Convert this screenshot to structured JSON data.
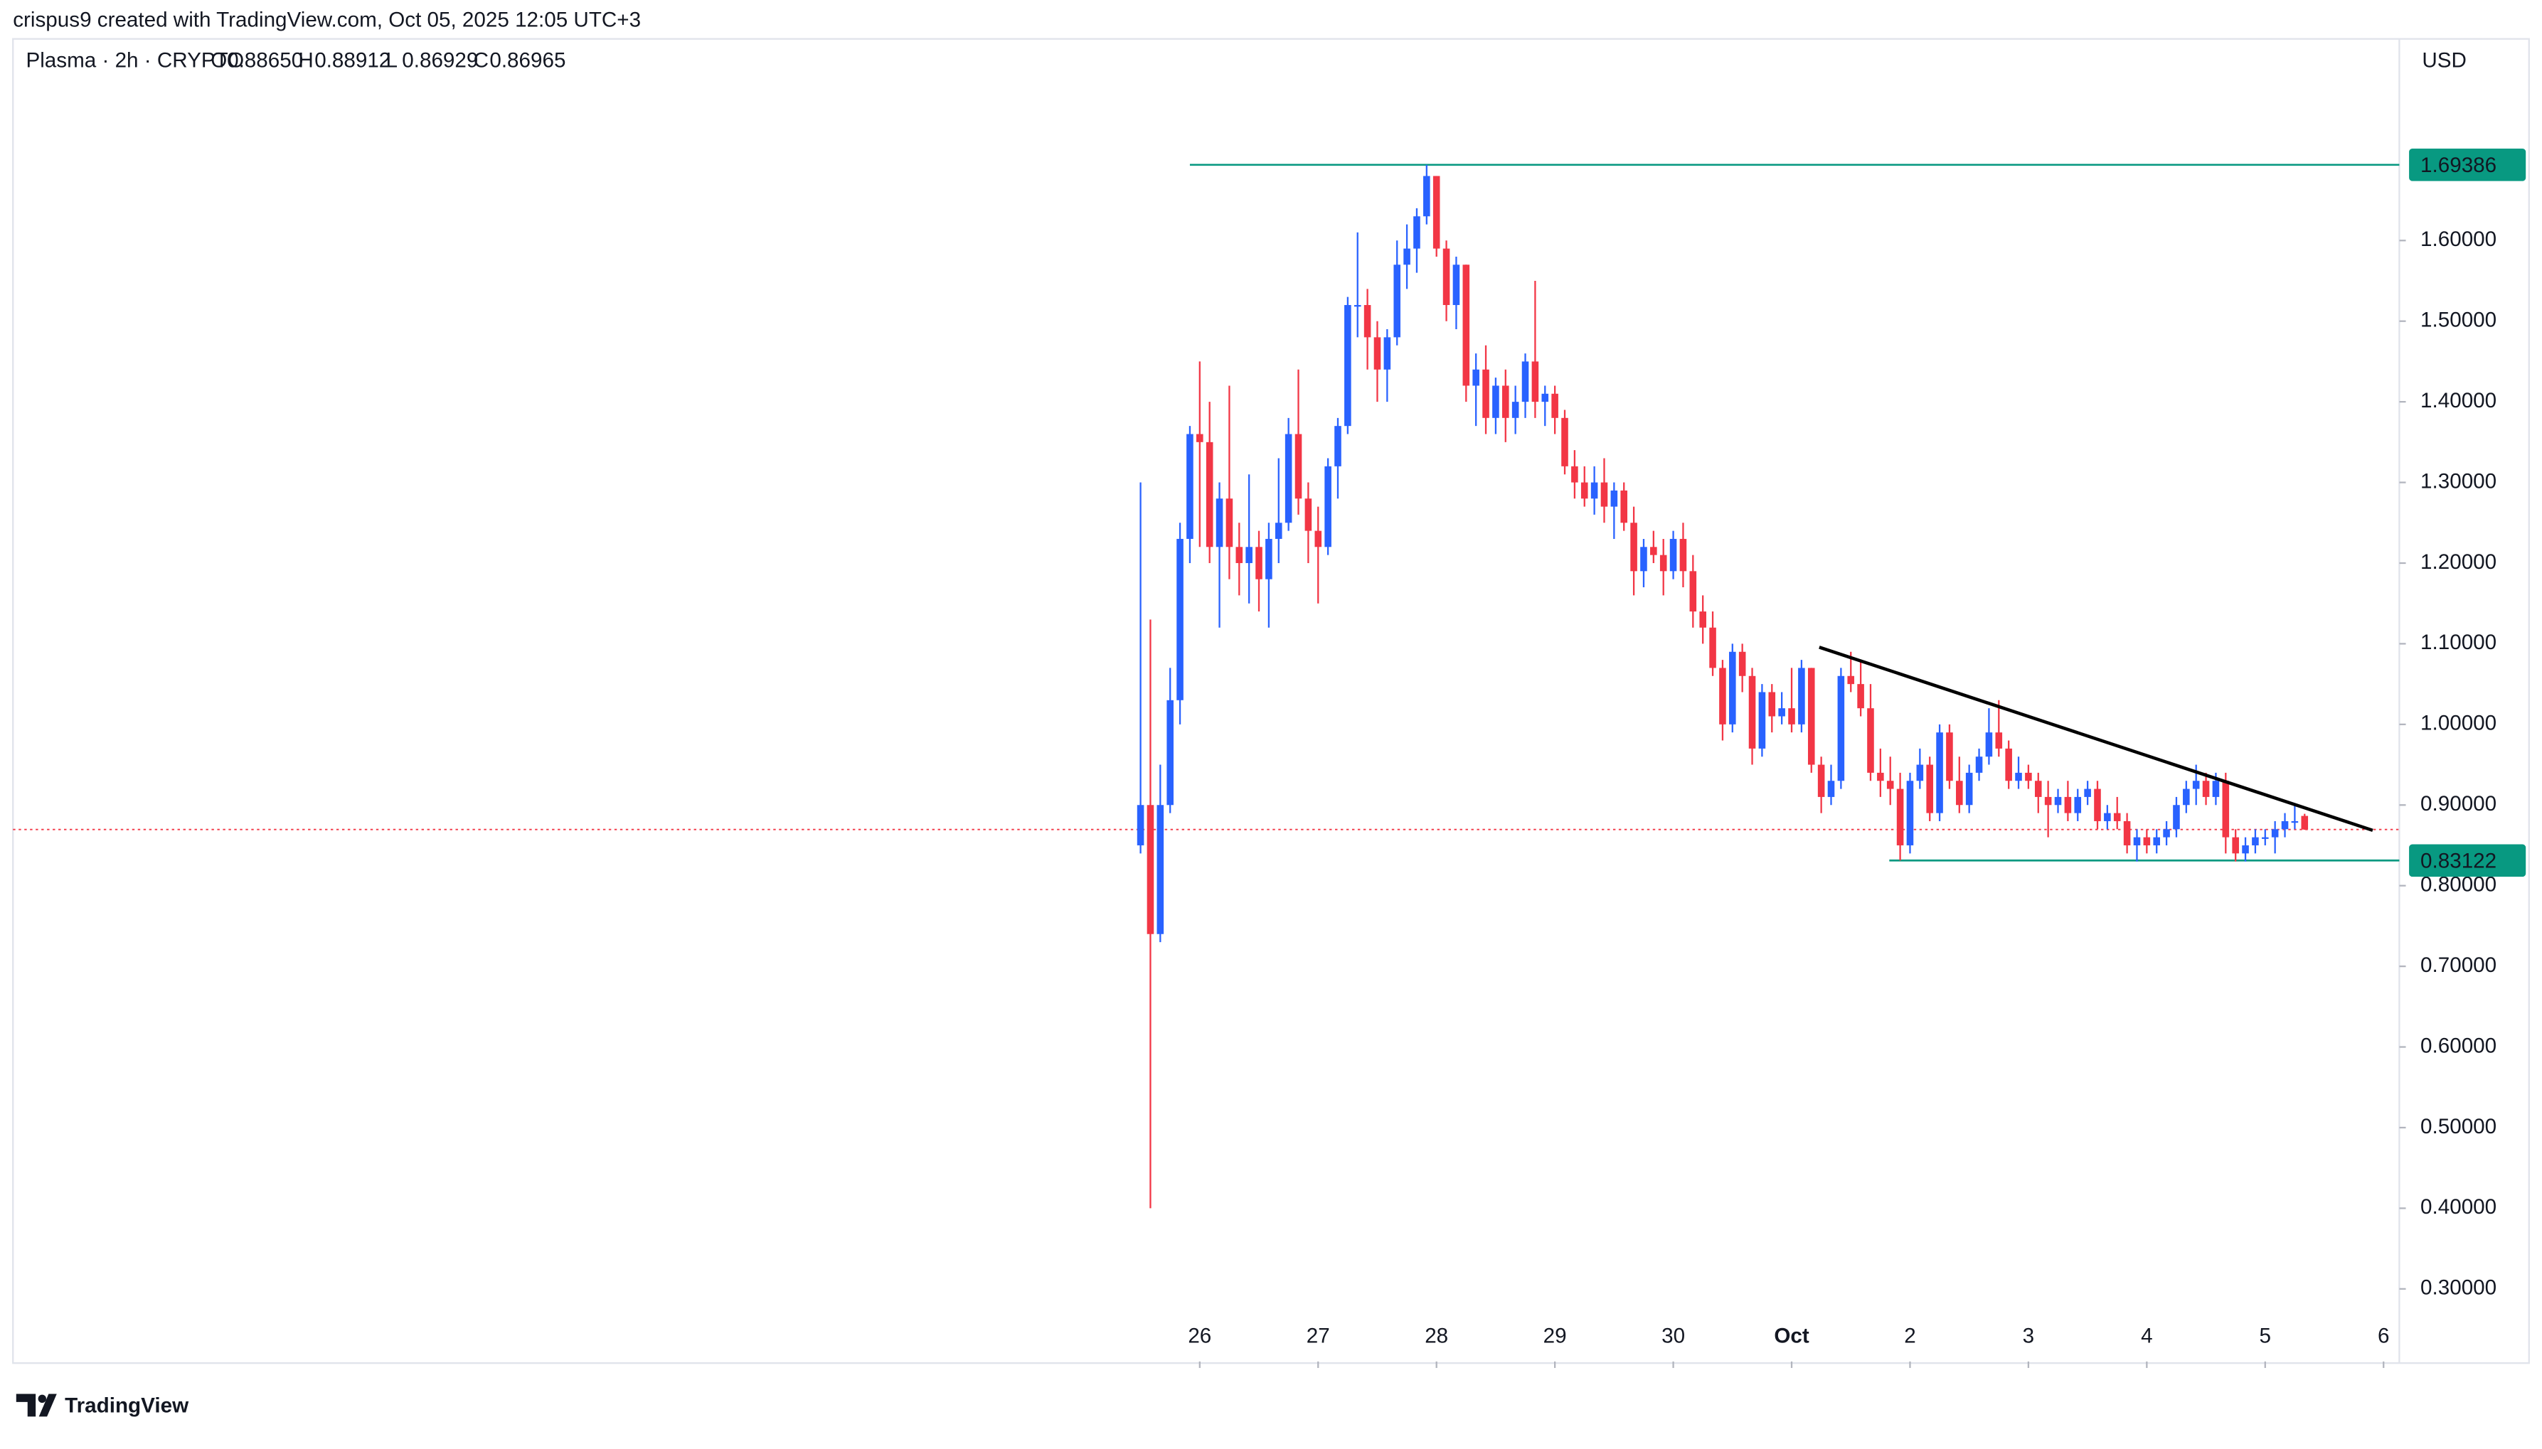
{
  "header": "crispus9 created with TradingView.com, Oct 05, 2025 12:05 UTC+3",
  "brand": "TradingView",
  "chart_data": {
    "type": "candlestick",
    "symbol": "Plasma · 2h · CRYPTO",
    "ohlc_legend": [
      {
        "name": "O",
        "value": 0.8865,
        "label": "0.88650"
      },
      {
        "name": "H",
        "value": 0.88912,
        "label": "0.88912"
      },
      {
        "name": "L",
        "value": 0.86929,
        "label": "0.86929"
      },
      {
        "name": "C",
        "value": 0.86965,
        "label": "0.86965"
      }
    ],
    "currency": "USD",
    "up_color": "#2962ff",
    "down_color": "#f23645",
    "xlim": [
      -114.3,
      127.6
    ],
    "xticks": [
      {
        "value": 6,
        "label": "26"
      },
      {
        "value": 18,
        "label": "27"
      },
      {
        "value": 30,
        "label": "28"
      },
      {
        "value": 42,
        "label": "29"
      },
      {
        "value": 54,
        "label": "30"
      },
      {
        "value": 66,
        "label": "Oct"
      },
      {
        "value": 78,
        "label": "2"
      },
      {
        "value": 90,
        "label": "3"
      },
      {
        "value": 102,
        "label": "4"
      },
      {
        "value": 114,
        "label": "5"
      },
      {
        "value": 126,
        "label": "6"
      }
    ],
    "ylim": [
      0.21,
      1.85
    ],
    "yticks": [
      {
        "value": 0.3,
        "label": "0.30000"
      },
      {
        "value": 0.4,
        "label": "0.40000"
      },
      {
        "value": 0.5,
        "label": "0.50000"
      },
      {
        "value": 0.6,
        "label": "0.60000"
      },
      {
        "value": 0.7,
        "label": "0.70000"
      },
      {
        "value": 0.8,
        "label": "0.80000"
      },
      {
        "value": 0.9,
        "label": "0.90000"
      },
      {
        "value": 1.0,
        "label": "1.00000"
      },
      {
        "value": 1.1,
        "label": "1.10000"
      },
      {
        "value": 1.2,
        "label": "1.20000"
      },
      {
        "value": 1.3,
        "label": "1.30000"
      },
      {
        "value": 1.4,
        "label": "1.40000"
      },
      {
        "value": 1.5,
        "label": "1.50000"
      },
      {
        "value": 1.6,
        "label": "1.60000"
      }
    ],
    "levels": [
      {
        "value": 1.69386,
        "x_start": 5,
        "color": "#089981"
      },
      {
        "value": 0.83122,
        "x_start": 75.9,
        "color": "#089981"
      }
    ],
    "trendline": {
      "x": [
        68.8,
        124.9
      ],
      "y": [
        1.0957,
        0.8686
      ],
      "color": "#000000"
    },
    "open": [
      0.85,
      0.9,
      0.74,
      0.9,
      1.03,
      1.23,
      1.36,
      1.35,
      1.22,
      1.28,
      1.22,
      1.2,
      1.22,
      1.18,
      1.23,
      1.25,
      1.36,
      1.28,
      1.24,
      1.22,
      1.32,
      1.37,
      1.52,
      1.52,
      1.48,
      1.44,
      1.48,
      1.57,
      1.59,
      1.63,
      1.68,
      1.59,
      1.52,
      1.57,
      1.42,
      1.44,
      1.38,
      1.42,
      1.38,
      1.4,
      1.45,
      1.4,
      1.41,
      1.38,
      1.32,
      1.3,
      1.28,
      1.3,
      1.27,
      1.29,
      1.25,
      1.19,
      1.22,
      1.21,
      1.19,
      1.23,
      1.19,
      1.14,
      1.12,
      1.07,
      1.0,
      1.09,
      1.06,
      0.97,
      1.04,
      1.01,
      1.02,
      1.0,
      1.07,
      0.95,
      0.91,
      0.93,
      1.06,
      1.05,
      1.02,
      0.94,
      0.93,
      0.92,
      0.85,
      0.93,
      0.95,
      0.89,
      0.99,
      0.93,
      0.9,
      0.94,
      0.96,
      0.99,
      0.97,
      0.93,
      0.94,
      0.93,
      0.91,
      0.9,
      0.91,
      0.89,
      0.91,
      0.92,
      0.88,
      0.89,
      0.88,
      0.85,
      0.86,
      0.85,
      0.86,
      0.87,
      0.9,
      0.92,
      0.93,
      0.91,
      0.93,
      0.86,
      0.84,
      0.85,
      0.86,
      0.86,
      0.87,
      0.88,
      0.8865
    ],
    "high": [
      1.3,
      1.13,
      0.95,
      1.07,
      1.25,
      1.37,
      1.45,
      1.4,
      1.3,
      1.42,
      1.25,
      1.31,
      1.24,
      1.25,
      1.33,
      1.38,
      1.44,
      1.3,
      1.27,
      1.33,
      1.38,
      1.53,
      1.61,
      1.54,
      1.5,
      1.49,
      1.6,
      1.62,
      1.64,
      1.69386,
      1.68,
      1.6,
      1.58,
      1.57,
      1.46,
      1.47,
      1.43,
      1.44,
      1.42,
      1.46,
      1.55,
      1.42,
      1.42,
      1.39,
      1.34,
      1.32,
      1.32,
      1.33,
      1.3,
      1.3,
      1.27,
      1.23,
      1.24,
      1.23,
      1.24,
      1.25,
      1.21,
      1.16,
      1.14,
      1.08,
      1.1,
      1.1,
      1.07,
      1.05,
      1.05,
      1.04,
      1.07,
      1.08,
      1.07,
      0.96,
      0.95,
      1.07,
      1.09,
      1.08,
      1.05,
      0.97,
      0.96,
      0.94,
      0.94,
      0.97,
      0.96,
      1.0,
      1.0,
      0.96,
      0.95,
      0.97,
      1.02,
      1.03,
      0.98,
      0.96,
      0.95,
      0.94,
      0.93,
      0.92,
      0.93,
      0.92,
      0.93,
      0.93,
      0.9,
      0.91,
      0.89,
      0.87,
      0.87,
      0.87,
      0.88,
      0.91,
      0.93,
      0.95,
      0.94,
      0.94,
      0.94,
      0.87,
      0.86,
      0.87,
      0.87,
      0.88,
      0.89,
      0.9,
      0.88912
    ],
    "low": [
      0.84,
      0.4,
      0.73,
      0.89,
      1.0,
      1.2,
      1.22,
      1.2,
      1.12,
      1.18,
      1.16,
      1.15,
      1.14,
      1.12,
      1.2,
      1.24,
      1.26,
      1.2,
      1.15,
      1.21,
      1.28,
      1.36,
      1.48,
      1.44,
      1.4,
      1.4,
      1.47,
      1.54,
      1.56,
      1.62,
      1.58,
      1.5,
      1.49,
      1.4,
      1.37,
      1.36,
      1.36,
      1.35,
      1.36,
      1.38,
      1.38,
      1.37,
      1.36,
      1.31,
      1.28,
      1.27,
      1.26,
      1.25,
      1.23,
      1.24,
      1.16,
      1.17,
      1.2,
      1.16,
      1.18,
      1.17,
      1.12,
      1.1,
      1.06,
      0.98,
      0.99,
      1.04,
      0.95,
      0.96,
      0.99,
      1.0,
      0.99,
      0.99,
      0.94,
      0.89,
      0.9,
      0.92,
      1.04,
      1.01,
      0.93,
      0.91,
      0.9,
      0.83122,
      0.84,
      0.92,
      0.88,
      0.88,
      0.92,
      0.89,
      0.89,
      0.93,
      0.95,
      0.96,
      0.92,
      0.92,
      0.92,
      0.89,
      0.86,
      0.89,
      0.88,
      0.88,
      0.9,
      0.87,
      0.87,
      0.87,
      0.84,
      0.83,
      0.84,
      0.84,
      0.85,
      0.86,
      0.89,
      0.9,
      0.9,
      0.9,
      0.84,
      0.83,
      0.83,
      0.84,
      0.85,
      0.84,
      0.86,
      0.87,
      0.86929
    ],
    "close": [
      0.9,
      0.74,
      0.9,
      1.03,
      1.23,
      1.36,
      1.35,
      1.22,
      1.28,
      1.22,
      1.2,
      1.22,
      1.18,
      1.23,
      1.25,
      1.36,
      1.28,
      1.24,
      1.22,
      1.32,
      1.37,
      1.52,
      1.52,
      1.48,
      1.44,
      1.48,
      1.57,
      1.59,
      1.63,
      1.68,
      1.59,
      1.52,
      1.57,
      1.42,
      1.44,
      1.38,
      1.42,
      1.38,
      1.4,
      1.45,
      1.4,
      1.41,
      1.38,
      1.32,
      1.3,
      1.28,
      1.3,
      1.27,
      1.29,
      1.25,
      1.19,
      1.22,
      1.21,
      1.19,
      1.23,
      1.19,
      1.14,
      1.12,
      1.07,
      1.0,
      1.09,
      1.06,
      0.97,
      1.04,
      1.01,
      1.02,
      1.0,
      1.07,
      0.95,
      0.91,
      0.93,
      1.06,
      1.05,
      1.02,
      0.94,
      0.93,
      0.92,
      0.85,
      0.93,
      0.95,
      0.89,
      0.99,
      0.93,
      0.9,
      0.94,
      0.96,
      0.99,
      0.97,
      0.93,
      0.94,
      0.93,
      0.91,
      0.9,
      0.91,
      0.89,
      0.91,
      0.92,
      0.88,
      0.89,
      0.88,
      0.85,
      0.86,
      0.85,
      0.86,
      0.87,
      0.9,
      0.92,
      0.93,
      0.91,
      0.93,
      0.86,
      0.84,
      0.85,
      0.86,
      0.86,
      0.87,
      0.88,
      0.88,
      0.86965
    ]
  }
}
